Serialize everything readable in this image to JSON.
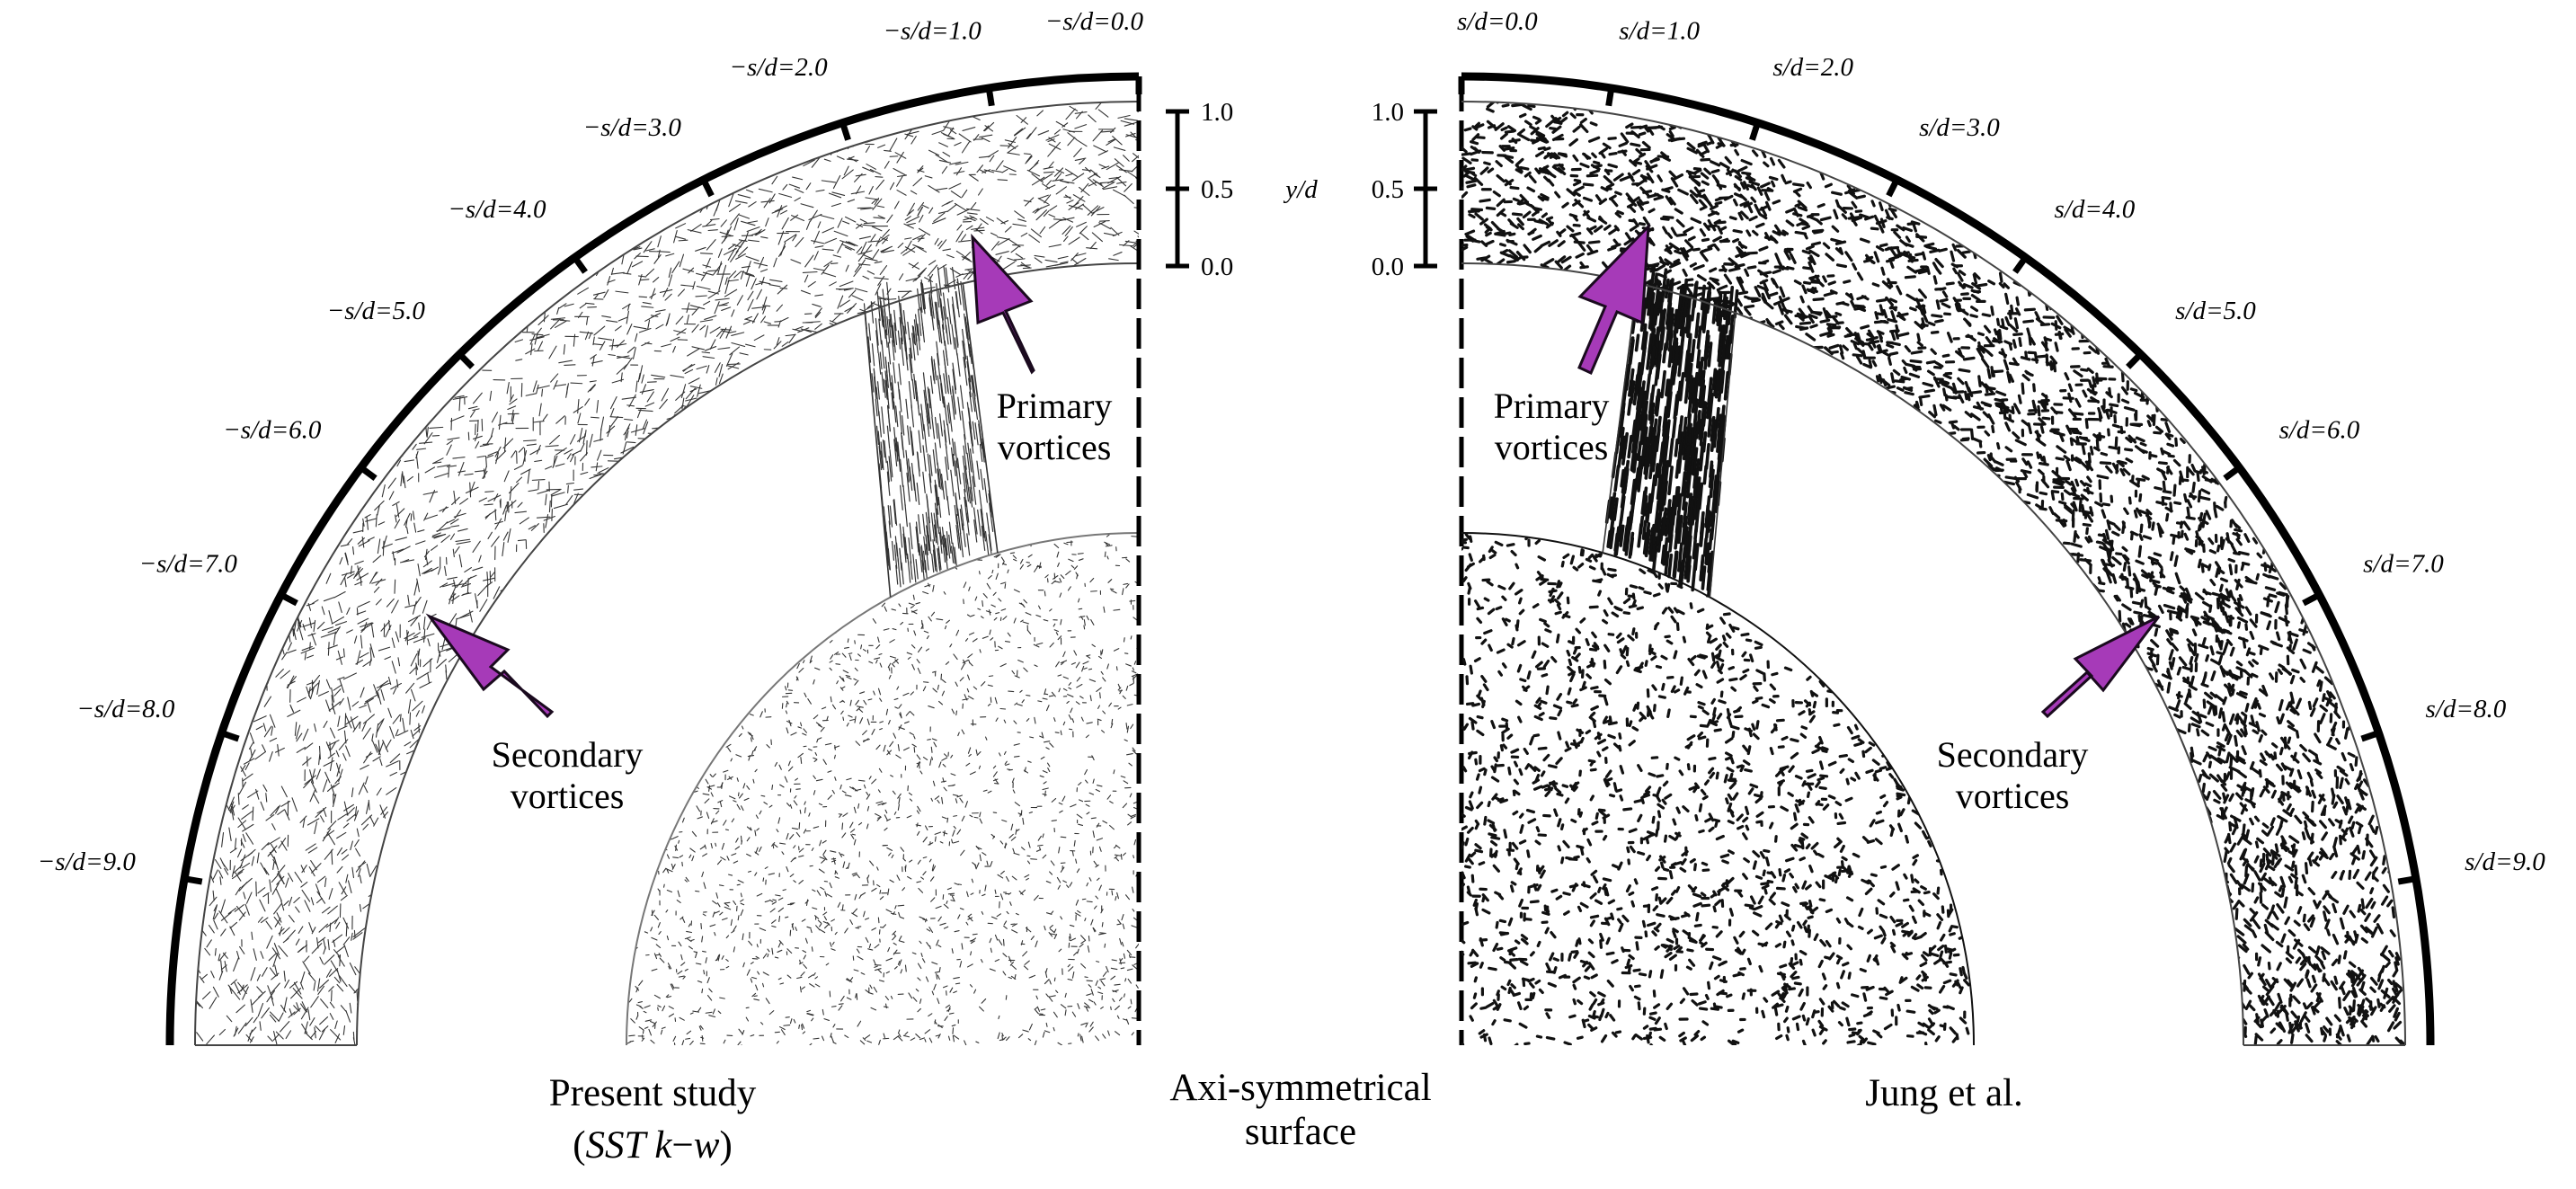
{
  "left_panel": {
    "caption_line1": "Present study",
    "caption_line2_open": "(",
    "caption_line2_model": "SST k",
    "caption_line2_dash": "−",
    "caption_line2_w": "w",
    "caption_line2_close": ")",
    "station_prefix": "−s/d=",
    "stations": [
      "0.0",
      "1.0",
      "2.0",
      "3.0",
      "4.0",
      "5.0",
      "6.0",
      "7.0",
      "8.0",
      "9.0"
    ],
    "annotations": {
      "primary_line1": "Primary",
      "primary_line2": "vortices",
      "secondary_line1": "Secondary",
      "secondary_line2": "vortices"
    }
  },
  "right_panel": {
    "caption": "Jung et al.",
    "station_prefix": "s/d=",
    "stations": [
      "0.0",
      "1.0",
      "2.0",
      "3.0",
      "4.0",
      "5.0",
      "6.0",
      "7.0",
      "8.0",
      "9.0"
    ],
    "annotations": {
      "primary_line1": "Primary",
      "primary_line2": "vortices",
      "secondary_line1": "Secondary",
      "secondary_line2": "vortices"
    }
  },
  "center": {
    "axis_line1": "Axi-symmetrical",
    "axis_line2": "surface"
  },
  "yd_scale": {
    "label": "y/d",
    "ticks": [
      "1.0",
      "0.5",
      "0.0"
    ]
  },
  "colors": {
    "arrow": "#a63ab8",
    "arrow_outline": "#1a0a1e",
    "ink": "#000000"
  }
}
